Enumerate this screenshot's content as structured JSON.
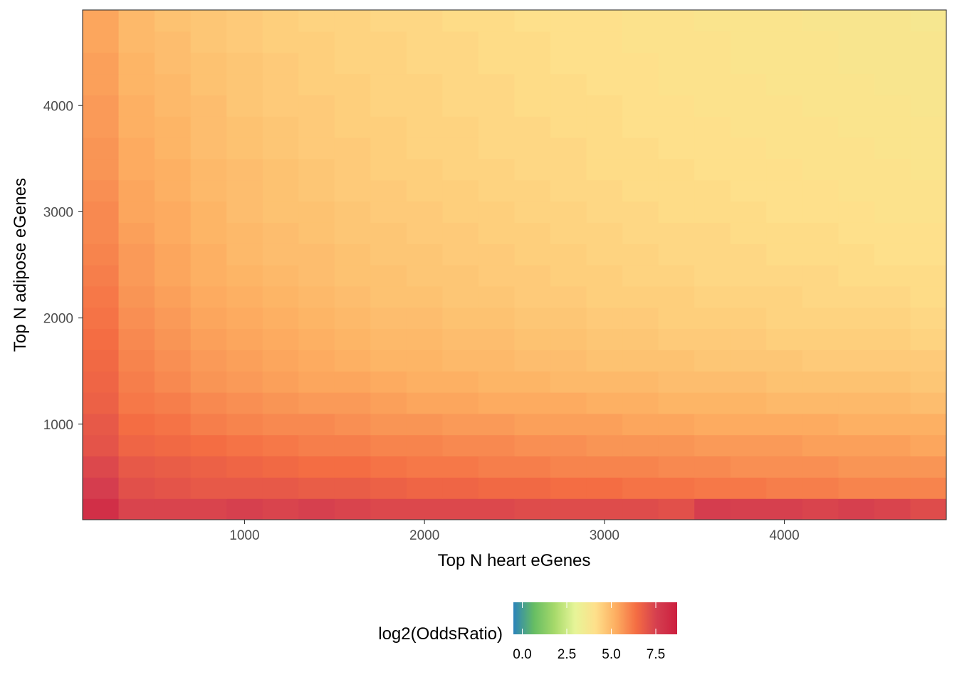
{
  "chart_data": {
    "type": "heatmap",
    "title": "",
    "xlabel": "Top N heart eGenes",
    "ylabel": "Top N adipose eGenes",
    "x_ticks": [
      1000,
      2000,
      3000,
      4000
    ],
    "y_ticks": [
      1000,
      2000,
      3000,
      4000
    ],
    "xlim": [
      100,
      4900
    ],
    "ylim": [
      100,
      4900
    ],
    "grid": false,
    "x": [
      200,
      400,
      600,
      800,
      1000,
      1200,
      1400,
      1600,
      1800,
      2000,
      2200,
      2400,
      2600,
      2800,
      3000,
      3200,
      3400,
      3600,
      3800,
      4000,
      4200,
      4400,
      4600,
      4800
    ],
    "y": [
      200,
      400,
      600,
      800,
      1000,
      1200,
      1400,
      1600,
      1800,
      2000,
      2200,
      2400,
      2600,
      2800,
      3000,
      3200,
      3400,
      3600,
      3800,
      4000,
      4200,
      4400,
      4600,
      4800
    ],
    "values": [
      [
        8.1,
        7.4,
        7.4,
        7.4,
        7.5,
        7.4,
        7.5,
        7.4,
        7.3,
        7.3,
        7.3,
        7.3,
        7.2,
        7.2,
        7.2,
        7.2,
        7.1,
        7.6,
        7.5,
        7.5,
        7.4,
        7.5,
        7.4,
        7.2
      ],
      [
        7.6,
        7.1,
        7.0,
        6.9,
        6.9,
        6.9,
        6.8,
        6.8,
        6.7,
        6.6,
        6.6,
        6.5,
        6.5,
        6.4,
        6.4,
        6.3,
        6.3,
        6.2,
        6.2,
        6.1,
        6.1,
        6.0,
        6.0,
        6.0
      ],
      [
        7.3,
        6.9,
        6.8,
        6.7,
        6.6,
        6.5,
        6.4,
        6.4,
        6.3,
        6.2,
        6.2,
        6.1,
        6.1,
        6.0,
        6.0,
        6.0,
        5.9,
        5.9,
        5.8,
        5.8,
        5.8,
        5.7,
        5.7,
        5.7
      ],
      [
        7.0,
        6.6,
        6.5,
        6.4,
        6.3,
        6.2,
        6.1,
        6.1,
        6.0,
        6.0,
        5.9,
        5.9,
        5.8,
        5.8,
        5.7,
        5.7,
        5.7,
        5.6,
        5.6,
        5.6,
        5.5,
        5.5,
        5.5,
        5.4
      ],
      [
        6.9,
        6.4,
        6.3,
        6.1,
        6.0,
        5.9,
        5.9,
        5.8,
        5.7,
        5.7,
        5.6,
        5.6,
        5.5,
        5.5,
        5.5,
        5.4,
        5.4,
        5.3,
        5.3,
        5.3,
        5.3,
        5.2,
        5.2,
        5.2
      ],
      [
        6.7,
        6.2,
        6.1,
        5.9,
        5.8,
        5.7,
        5.6,
        5.6,
        5.5,
        5.4,
        5.4,
        5.3,
        5.3,
        5.3,
        5.2,
        5.2,
        5.1,
        5.1,
        5.1,
        5.0,
        5.0,
        5.0,
        5.0,
        4.9
      ],
      [
        6.6,
        6.1,
        5.9,
        5.7,
        5.6,
        5.5,
        5.4,
        5.4,
        5.3,
        5.2,
        5.2,
        5.1,
        5.1,
        5.0,
        5.0,
        5.0,
        4.9,
        4.9,
        4.9,
        4.8,
        4.8,
        4.8,
        4.8,
        4.7
      ],
      [
        6.5,
        6.0,
        5.8,
        5.6,
        5.5,
        5.4,
        5.3,
        5.2,
        5.1,
        5.1,
        5.0,
        5.0,
        4.9,
        4.9,
        4.8,
        4.8,
        4.8,
        4.7,
        4.7,
        4.7,
        4.6,
        4.6,
        4.6,
        4.6
      ],
      [
        6.4,
        5.9,
        5.7,
        5.5,
        5.4,
        5.3,
        5.2,
        5.1,
        5.0,
        5.0,
        4.9,
        4.9,
        4.8,
        4.8,
        4.7,
        4.7,
        4.6,
        4.6,
        4.6,
        4.5,
        4.5,
        4.5,
        4.5,
        4.4
      ],
      [
        6.3,
        5.8,
        5.6,
        5.4,
        5.3,
        5.2,
        5.1,
        5.0,
        4.9,
        4.9,
        4.8,
        4.8,
        4.7,
        4.7,
        4.6,
        4.6,
        4.5,
        4.5,
        4.5,
        4.4,
        4.4,
        4.4,
        4.4,
        4.3
      ],
      [
        6.2,
        5.7,
        5.5,
        5.3,
        5.2,
        5.1,
        5.0,
        4.9,
        4.8,
        4.8,
        4.7,
        4.7,
        4.6,
        4.6,
        4.5,
        4.5,
        4.5,
        4.4,
        4.4,
        4.4,
        4.3,
        4.3,
        4.3,
        4.2
      ],
      [
        6.1,
        5.6,
        5.4,
        5.2,
        5.1,
        5.0,
        4.9,
        4.8,
        4.8,
        4.7,
        4.7,
        4.6,
        4.6,
        4.5,
        4.5,
        4.4,
        4.4,
        4.3,
        4.3,
        4.3,
        4.3,
        4.2,
        4.2,
        4.2
      ],
      [
        6.0,
        5.6,
        5.4,
        5.2,
        5.0,
        4.9,
        4.9,
        4.8,
        4.7,
        4.7,
        4.6,
        4.6,
        4.5,
        4.5,
        4.4,
        4.4,
        4.3,
        4.3,
        4.3,
        4.2,
        4.2,
        4.2,
        4.1,
        4.1
      ],
      [
        5.9,
        5.5,
        5.3,
        5.1,
        5.0,
        4.9,
        4.8,
        4.7,
        4.7,
        4.6,
        4.6,
        4.5,
        4.5,
        4.4,
        4.4,
        4.3,
        4.3,
        4.3,
        4.2,
        4.2,
        4.2,
        4.1,
        4.1,
        4.1
      ],
      [
        5.9,
        5.4,
        5.3,
        5.1,
        4.9,
        4.8,
        4.8,
        4.7,
        4.6,
        4.6,
        4.5,
        4.5,
        4.4,
        4.4,
        4.3,
        4.3,
        4.2,
        4.2,
        4.2,
        4.1,
        4.1,
        4.1,
        4.0,
        4.0
      ],
      [
        5.8,
        5.4,
        5.2,
        5.0,
        4.9,
        4.8,
        4.7,
        4.6,
        4.6,
        4.5,
        4.5,
        4.4,
        4.4,
        4.3,
        4.3,
        4.2,
        4.2,
        4.2,
        4.1,
        4.1,
        4.1,
        4.0,
        4.0,
        4.0
      ],
      [
        5.7,
        5.3,
        5.2,
        5.0,
        4.9,
        4.8,
        4.7,
        4.6,
        4.5,
        4.5,
        4.4,
        4.4,
        4.3,
        4.3,
        4.2,
        4.2,
        4.2,
        4.1,
        4.1,
        4.1,
        4.0,
        4.0,
        4.0,
        3.9
      ],
      [
        5.7,
        5.3,
        5.1,
        4.9,
        4.8,
        4.7,
        4.6,
        4.6,
        4.5,
        4.4,
        4.4,
        4.3,
        4.3,
        4.3,
        4.2,
        4.2,
        4.1,
        4.1,
        4.1,
        4.0,
        4.0,
        4.0,
        3.9,
        3.9
      ],
      [
        5.6,
        5.2,
        5.1,
        4.9,
        4.8,
        4.7,
        4.6,
        4.5,
        4.5,
        4.4,
        4.4,
        4.3,
        4.3,
        4.2,
        4.2,
        4.1,
        4.1,
        4.1,
        4.0,
        4.0,
        4.0,
        3.9,
        3.9,
        3.9
      ],
      [
        5.6,
        5.2,
        5.0,
        4.9,
        4.7,
        4.6,
        4.6,
        4.5,
        4.4,
        4.4,
        4.3,
        4.3,
        4.2,
        4.2,
        4.2,
        4.1,
        4.1,
        4.0,
        4.0,
        4.0,
        3.9,
        3.9,
        3.9,
        3.8
      ],
      [
        5.5,
        5.1,
        5.0,
        4.8,
        4.7,
        4.6,
        4.5,
        4.5,
        4.4,
        4.4,
        4.3,
        4.3,
        4.2,
        4.2,
        4.1,
        4.1,
        4.0,
        4.0,
        4.0,
        3.9,
        3.9,
        3.9,
        3.8,
        3.8
      ],
      [
        5.5,
        5.1,
        4.9,
        4.8,
        4.7,
        4.6,
        4.5,
        4.4,
        4.4,
        4.3,
        4.3,
        4.2,
        4.2,
        4.1,
        4.1,
        4.1,
        4.0,
        4.0,
        3.9,
        3.9,
        3.9,
        3.8,
        3.8,
        3.8
      ],
      [
        5.4,
        5.0,
        4.9,
        4.7,
        4.6,
        4.5,
        4.5,
        4.4,
        4.4,
        4.3,
        4.3,
        4.2,
        4.2,
        4.1,
        4.1,
        4.0,
        4.0,
        4.0,
        3.9,
        3.9,
        3.9,
        3.8,
        3.8,
        3.8
      ],
      [
        5.4,
        5.0,
        4.8,
        4.7,
        4.6,
        4.5,
        4.4,
        4.4,
        4.3,
        4.3,
        4.2,
        4.2,
        4.1,
        4.1,
        4.1,
        4.0,
        4.0,
        3.9,
        3.9,
        3.9,
        3.8,
        3.8,
        3.8,
        3.7
      ]
    ],
    "legend": {
      "title": "log2(OddsRatio)",
      "position": "bottom",
      "range": [
        -0.5,
        8.7
      ],
      "ticks": [
        0.0,
        2.5,
        5.0,
        7.5
      ],
      "tick_labels": [
        "0.0",
        "2.5",
        "5.0",
        "7.5"
      ]
    },
    "palette": [
      "#2b83ba",
      "#66bd63",
      "#a6d96a",
      "#e6f598",
      "#fee08b",
      "#fdae61",
      "#f46d43",
      "#d53e4f",
      "#cc1f3f"
    ]
  }
}
